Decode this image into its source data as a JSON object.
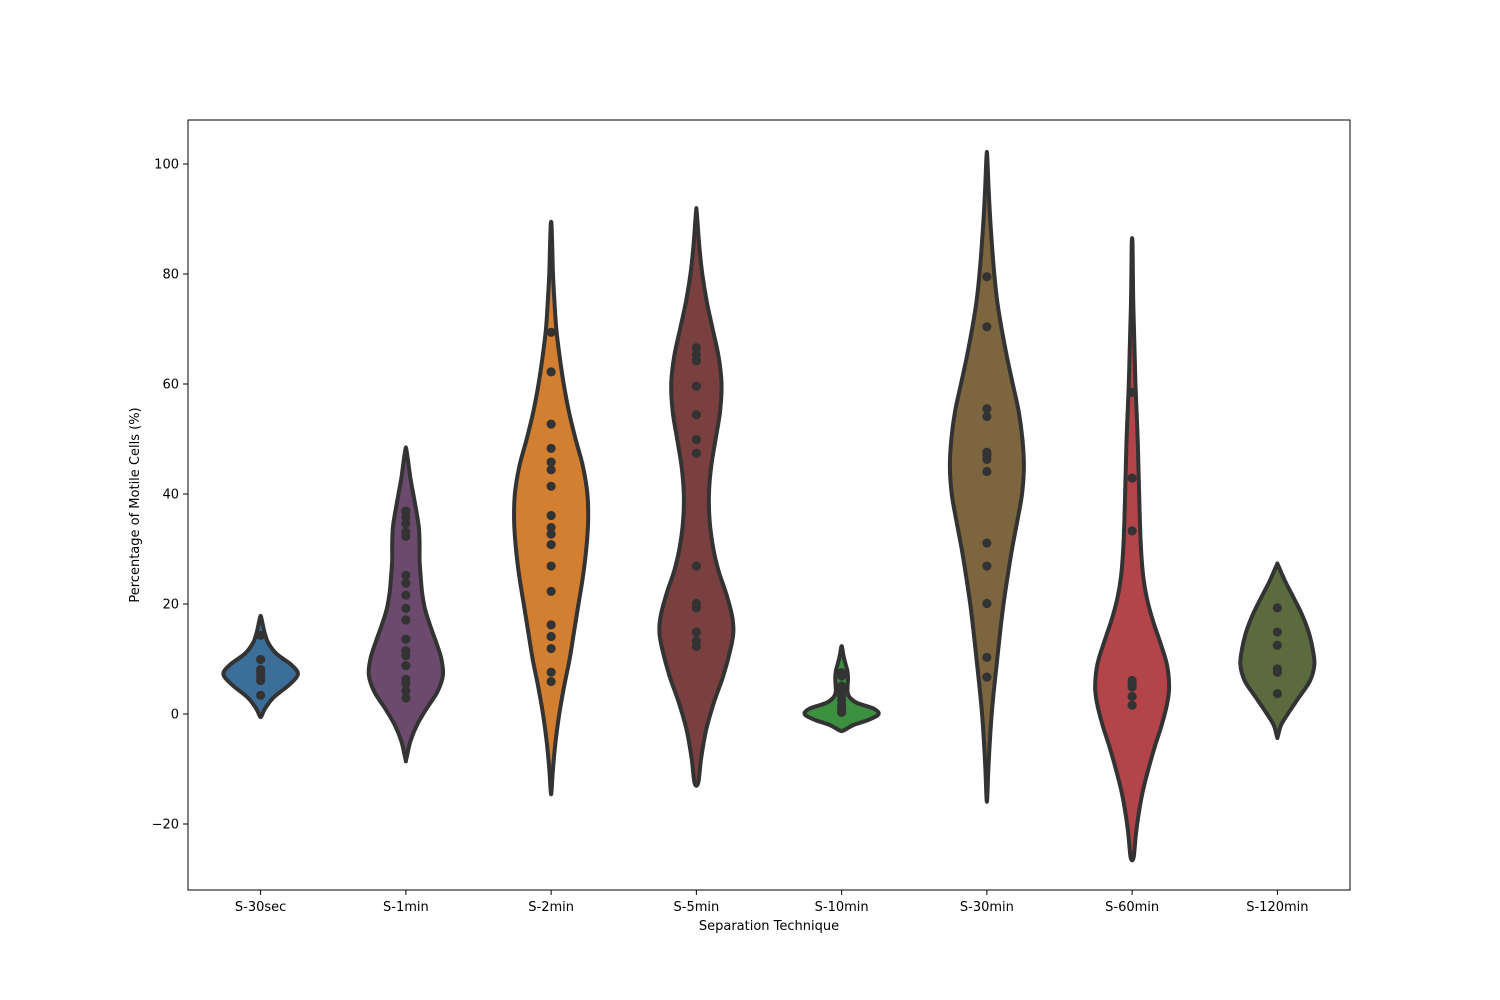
{
  "chart_data": {
    "type": "violin",
    "title": "",
    "xlabel": "Separation Technique",
    "ylabel": "Percentage of Motile Cells (%)",
    "ylim": [
      -32,
      108
    ],
    "yticks": [
      -20,
      0,
      20,
      40,
      60,
      80,
      100
    ],
    "ytick_labels": [
      "−20",
      "0",
      "20",
      "40",
      "60",
      "80",
      "100"
    ],
    "grid": false,
    "legend": "none",
    "point_color": "#333333",
    "outline_color": "#333333",
    "categories": [
      "S-30sec",
      "S-1min",
      "S-2min",
      "S-5min",
      "S-10min",
      "S-30min",
      "S-60min",
      "S-120min"
    ],
    "series": [
      {
        "category": "S-30sec",
        "color": "#3b6e99",
        "points": [
          3.4,
          6.1,
          6.8,
          7.6,
          8.1,
          9.9,
          14.3
        ],
        "range": [
          -0.4,
          17.7
        ],
        "profile": [
          [
            -0.4,
            0.02
          ],
          [
            1,
            0.12
          ],
          [
            3,
            0.35
          ],
          [
            5,
            0.72
          ],
          [
            6.5,
            0.95
          ],
          [
            7.6,
            1.0
          ],
          [
            9,
            0.82
          ],
          [
            11,
            0.42
          ],
          [
            13,
            0.2
          ],
          [
            15,
            0.1
          ],
          [
            16.5,
            0.05
          ],
          [
            17.7,
            0.01
          ]
        ]
      },
      {
        "category": "S-1min",
        "color": "#6c4a6e",
        "points": [
          2.9,
          4.2,
          5.5,
          6.3,
          8.8,
          10.6,
          11.5,
          13.6,
          17.1,
          19.2,
          21.6,
          23.8,
          25.2,
          32.3,
          33.1,
          34.6,
          35.8,
          36.9
        ],
        "range": [
          -8.2,
          48.2
        ],
        "profile": [
          [
            -8.2,
            0.01
          ],
          [
            -5,
            0.12
          ],
          [
            -2,
            0.3
          ],
          [
            1,
            0.56
          ],
          [
            4,
            0.85
          ],
          [
            7,
            1.0
          ],
          [
            10,
            0.96
          ],
          [
            13,
            0.82
          ],
          [
            16,
            0.66
          ],
          [
            19,
            0.52
          ],
          [
            22,
            0.44
          ],
          [
            25,
            0.4
          ],
          [
            28,
            0.37
          ],
          [
            31,
            0.37
          ],
          [
            34,
            0.35
          ],
          [
            37,
            0.28
          ],
          [
            40,
            0.2
          ],
          [
            43,
            0.12
          ],
          [
            46,
            0.06
          ],
          [
            48.2,
            0.01
          ]
        ]
      },
      {
        "category": "S-2min",
        "color": "#d37f32",
        "points": [
          5.9,
          7.6,
          11.9,
          14.1,
          16.2,
          22.3,
          26.9,
          30.8,
          32.7,
          33.9,
          36.1,
          41.4,
          44.4,
          45.8,
          48.3,
          52.7,
          62.2,
          69.4
        ],
        "range": [
          -14.1,
          89.0
        ],
        "profile": [
          [
            -14.1,
            0.01
          ],
          [
            -10,
            0.05
          ],
          [
            -5,
            0.12
          ],
          [
            0,
            0.22
          ],
          [
            5,
            0.35
          ],
          [
            10,
            0.5
          ],
          [
            15,
            0.62
          ],
          [
            20,
            0.74
          ],
          [
            25,
            0.86
          ],
          [
            30,
            0.95
          ],
          [
            35,
            1.0
          ],
          [
            40,
            0.98
          ],
          [
            45,
            0.86
          ],
          [
            50,
            0.66
          ],
          [
            55,
            0.48
          ],
          [
            60,
            0.34
          ],
          [
            65,
            0.23
          ],
          [
            70,
            0.14
          ],
          [
            75,
            0.09
          ],
          [
            80,
            0.05
          ],
          [
            85,
            0.03
          ],
          [
            89,
            0.01
          ]
        ]
      },
      {
        "category": "S-5min",
        "color": "#7a3f3f",
        "points": [
          12.3,
          13.3,
          14.9,
          19.3,
          20.1,
          26.9,
          47.4,
          49.9,
          54.4,
          59.6,
          64.2,
          65.3,
          66.6
        ],
        "range": [
          -12.5,
          91.2
        ],
        "profile": [
          [
            -12.5,
            0.05
          ],
          [
            -8,
            0.13
          ],
          [
            -3,
            0.26
          ],
          [
            2,
            0.47
          ],
          [
            7,
            0.73
          ],
          [
            12,
            0.93
          ],
          [
            15,
            1.0
          ],
          [
            18,
            0.96
          ],
          [
            22,
            0.8
          ],
          [
            26,
            0.6
          ],
          [
            30,
            0.46
          ],
          [
            35,
            0.36
          ],
          [
            40,
            0.34
          ],
          [
            45,
            0.4
          ],
          [
            50,
            0.52
          ],
          [
            55,
            0.64
          ],
          [
            60,
            0.68
          ],
          [
            65,
            0.6
          ],
          [
            70,
            0.44
          ],
          [
            75,
            0.28
          ],
          [
            80,
            0.16
          ],
          [
            85,
            0.08
          ],
          [
            91.2,
            0.01
          ]
        ]
      },
      {
        "category": "S-10min",
        "color": "#3c9140",
        "points": [
          0.3,
          0.9,
          1.6,
          2.5,
          3.3,
          4.2,
          5.1,
          6.9,
          7.5
        ],
        "range": [
          -3.0,
          12.2
        ],
        "profile": [
          [
            -3.0,
            0.05
          ],
          [
            -2,
            0.32
          ],
          [
            -1,
            0.75
          ],
          [
            0,
            1.0
          ],
          [
            1,
            0.86
          ],
          [
            2,
            0.42
          ],
          [
            3,
            0.22
          ],
          [
            4,
            0.16
          ],
          [
            5,
            0.16
          ],
          [
            6,
            0.17
          ],
          [
            7,
            0.17
          ],
          [
            8,
            0.15
          ],
          [
            9,
            0.11
          ],
          [
            10,
            0.07
          ],
          [
            11,
            0.04
          ],
          [
            12.2,
            0.01
          ]
        ]
      },
      {
        "category": "S-30min",
        "color": "#7d6540",
        "points": [
          6.7,
          10.3,
          20.1,
          26.9,
          31.1,
          44.1,
          46.3,
          47.1,
          47.6,
          54.1,
          55.5,
          70.4,
          79.5
        ],
        "range": [
          -15.3,
          101.4
        ],
        "profile": [
          [
            -15.3,
            0.01
          ],
          [
            -10,
            0.04
          ],
          [
            -5,
            0.08
          ],
          [
            0,
            0.13
          ],
          [
            5,
            0.2
          ],
          [
            10,
            0.28
          ],
          [
            15,
            0.36
          ],
          [
            20,
            0.45
          ],
          [
            25,
            0.56
          ],
          [
            30,
            0.68
          ],
          [
            35,
            0.82
          ],
          [
            40,
            0.95
          ],
          [
            45,
            1.0
          ],
          [
            50,
            0.96
          ],
          [
            55,
            0.86
          ],
          [
            60,
            0.7
          ],
          [
            65,
            0.54
          ],
          [
            70,
            0.4
          ],
          [
            75,
            0.28
          ],
          [
            80,
            0.2
          ],
          [
            85,
            0.14
          ],
          [
            90,
            0.09
          ],
          [
            95,
            0.05
          ],
          [
            101.4,
            0.01
          ]
        ]
      },
      {
        "category": "S-60min",
        "color": "#b3444a",
        "points": [
          1.6,
          3.2,
          4.9,
          5.6,
          6.1,
          33.3,
          42.9,
          58.5
        ],
        "range": [
          -26.1,
          85.8
        ],
        "profile": [
          [
            -26.1,
            0.04
          ],
          [
            -22,
            0.1
          ],
          [
            -18,
            0.18
          ],
          [
            -14,
            0.29
          ],
          [
            -10,
            0.44
          ],
          [
            -6,
            0.61
          ],
          [
            -2,
            0.8
          ],
          [
            2,
            0.95
          ],
          [
            5,
            1.0
          ],
          [
            9,
            0.94
          ],
          [
            13,
            0.76
          ],
          [
            17,
            0.56
          ],
          [
            21,
            0.4
          ],
          [
            25,
            0.3
          ],
          [
            30,
            0.24
          ],
          [
            35,
            0.21
          ],
          [
            40,
            0.19
          ],
          [
            45,
            0.17
          ],
          [
            50,
            0.15
          ],
          [
            55,
            0.12
          ],
          [
            60,
            0.09
          ],
          [
            65,
            0.07
          ],
          [
            70,
            0.05
          ],
          [
            75,
            0.03
          ],
          [
            80,
            0.02
          ],
          [
            85.8,
            0.01
          ]
        ]
      },
      {
        "category": "S-120min",
        "color": "#5b6b3e",
        "points": [
          3.7,
          7.6,
          8.2,
          12.5,
          14.9,
          19.3
        ],
        "range": [
          -4.1,
          27.0
        ],
        "profile": [
          [
            -4.1,
            0.01
          ],
          [
            -2,
            0.1
          ],
          [
            0,
            0.28
          ],
          [
            3,
            0.58
          ],
          [
            6,
            0.88
          ],
          [
            9,
            1.0
          ],
          [
            12,
            0.95
          ],
          [
            15,
            0.84
          ],
          [
            18,
            0.67
          ],
          [
            21,
            0.45
          ],
          [
            24,
            0.22
          ],
          [
            27,
            0.02
          ]
        ]
      }
    ]
  }
}
